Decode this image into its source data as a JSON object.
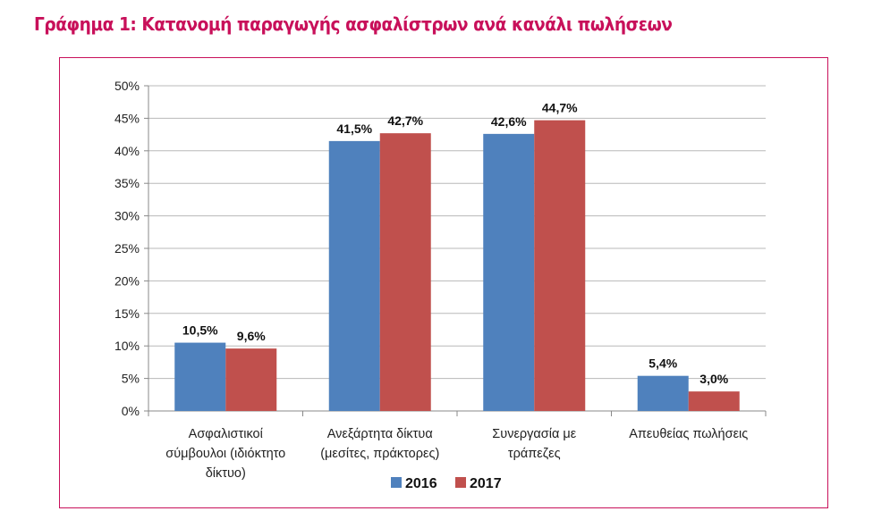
{
  "title": "Γράφημα 1: Κατανομή παραγωγής ασφαλίστρων ανά κανάλι πωλήσεων",
  "chart_data": {
    "type": "bar",
    "title": "Γράφημα 1: Κατανομή παραγωγής ασφαλίστρων ανά κανάλι πωλήσεων",
    "categories": [
      [
        "Ασφαλιστικοί",
        "σύμβουλοι (ιδιόκτητο",
        "δίκτυο)"
      ],
      [
        "Ανεξάρτητα δίκτυα",
        "(μεσίτες, πράκτορες)"
      ],
      [
        "Συνεργασία με",
        "τράπεζες"
      ],
      [
        "Απευθείας πωλήσεις"
      ]
    ],
    "series": [
      {
        "name": "2016",
        "color": "#4f81bd",
        "values": [
          10.5,
          41.5,
          42.6,
          5.4
        ],
        "labels": [
          "10,5%",
          "41,5%",
          "42,6%",
          "5,4%"
        ]
      },
      {
        "name": "2017",
        "color": "#c0504d",
        "values": [
          9.6,
          42.7,
          44.7,
          3.0
        ],
        "labels": [
          "9,6%",
          "42,7%",
          "44,7%",
          "3,0%"
        ]
      }
    ],
    "yticks": [
      "0%",
      "5%",
      "10%",
      "15%",
      "20%",
      "25%",
      "30%",
      "35%",
      "40%",
      "45%",
      "50%"
    ],
    "ylim": [
      0,
      50
    ],
    "xlabel": "",
    "ylabel": "",
    "grid": true,
    "legend": "bottom"
  }
}
